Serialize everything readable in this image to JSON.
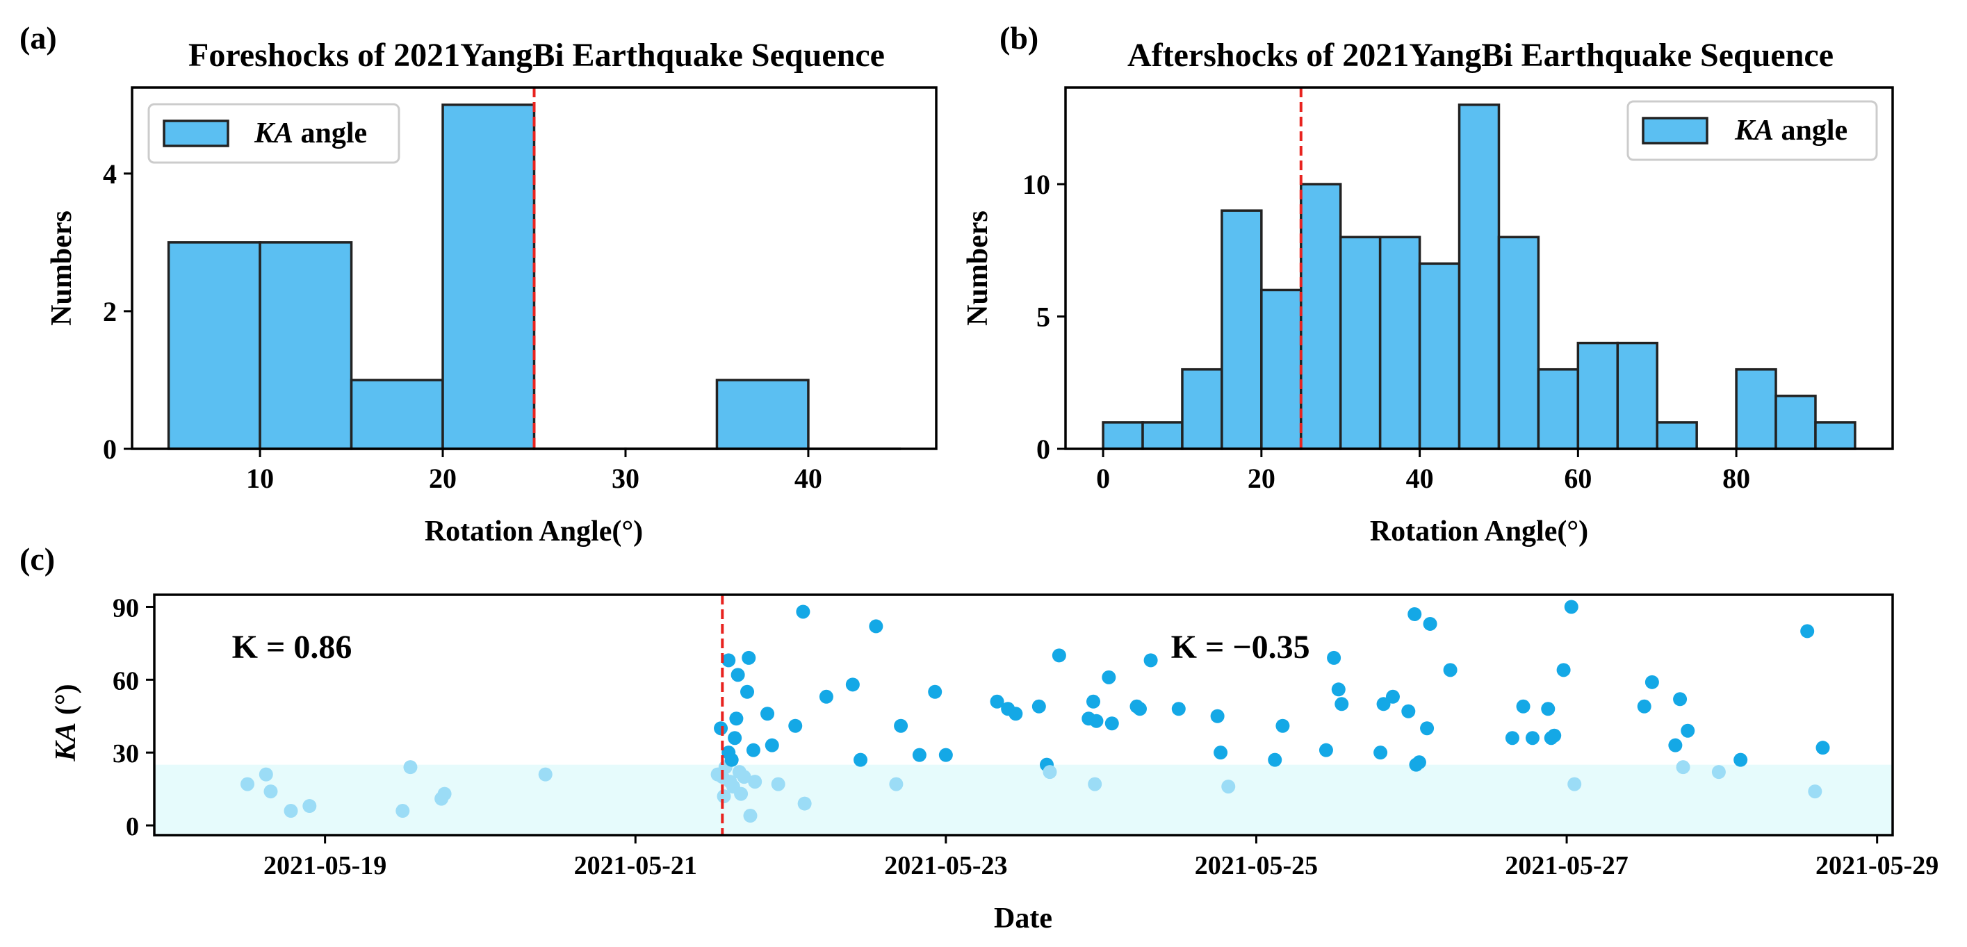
{
  "colors": {
    "bar_fill": "#5bbff2",
    "bar_edge": "#222222",
    "dashed_line": "#e8231f",
    "scatter_point": "#14a8e6",
    "scatter_point_light": "#9bdcf6",
    "band_fill": "#e6fbfc"
  },
  "chart_data": [
    {
      "type": "bar",
      "panel_label": "(a)",
      "title": "Foreshocks of 2021YangBi Earthquake Sequence",
      "xlabel": "Rotation Angle(°)",
      "ylabel": "Numbers",
      "xlim": [
        3,
        47
      ],
      "ylim": [
        0,
        5.25
      ],
      "xticks": [
        10,
        20,
        30,
        40
      ],
      "xtick_labels": [
        "10",
        "20",
        "30",
        "40"
      ],
      "yticks": [
        0,
        2,
        4
      ],
      "ytick_labels": [
        "0",
        "2",
        "4"
      ],
      "bin_edges": [
        5,
        10,
        15,
        20,
        25,
        30,
        35,
        40,
        45
      ],
      "values": [
        3,
        3,
        1,
        5,
        0,
        0,
        1,
        0
      ],
      "reference_line_x": 25,
      "legend": {
        "label_italic": "KA",
        "label_rest": " angle",
        "position": "top-left"
      }
    },
    {
      "type": "bar",
      "panel_label": "(b)",
      "title": "Aftershocks of 2021YangBi Earthquake Sequence",
      "xlabel": "Rotation Angle(°)",
      "ylabel": "Numbers",
      "xlim": [
        -4.75,
        99.75
      ],
      "ylim": [
        0,
        13.65
      ],
      "xticks": [
        0,
        20,
        40,
        60,
        80
      ],
      "xtick_labels": [
        "0",
        "20",
        "40",
        "60",
        "80"
      ],
      "yticks": [
        0,
        5,
        10
      ],
      "ytick_labels": [
        "0",
        "5",
        "10"
      ],
      "bin_edges": [
        0,
        5,
        10,
        15,
        20,
        25,
        30,
        35,
        40,
        45,
        50,
        55,
        60,
        65,
        70,
        75,
        80,
        85,
        90,
        95
      ],
      "values": [
        1,
        1,
        3,
        9,
        6,
        10,
        8,
        8,
        7,
        13,
        8,
        3,
        4,
        4,
        1,
        0,
        3,
        2,
        1
      ],
      "reference_line_x": 25,
      "legend": {
        "label_italic": "KA",
        "label_rest": " angle",
        "position": "top-right"
      }
    },
    {
      "type": "scatter",
      "panel_label": "(c)",
      "xlabel": "Date",
      "ylabel_italic": "KA",
      "ylabel_rest": " (°)",
      "xlim": [
        17.9,
        29.1
      ],
      "ylim": [
        -4,
        95
      ],
      "xticks": [
        19,
        21,
        23,
        25,
        27,
        29
      ],
      "xtick_labels": [
        "2021-05-19",
        "2021-05-21",
        "2021-05-23",
        "2021-05-25",
        "2021-05-27",
        "2021-05-29"
      ],
      "yticks": [
        0,
        30,
        60,
        90
      ],
      "ytick_labels": [
        "0",
        "30",
        "60",
        "90"
      ],
      "band_ymax": 25,
      "reference_line_x": 21.56,
      "annotations": [
        {
          "text": "K = 0.86",
          "x": 18.4,
          "y": 69
        },
        {
          "text": "K = −0.35",
          "x": 24.45,
          "y": 69
        }
      ],
      "points_x_unit": "day of May 2021 (fractional)",
      "points": [
        [
          18.5,
          17
        ],
        [
          18.62,
          21
        ],
        [
          18.65,
          14
        ],
        [
          18.78,
          6
        ],
        [
          18.9,
          8
        ],
        [
          19.5,
          6
        ],
        [
          19.55,
          24
        ],
        [
          19.75,
          11
        ],
        [
          19.77,
          13
        ],
        [
          20.42,
          21
        ],
        [
          21.53,
          21
        ],
        [
          21.55,
          40
        ],
        [
          21.56,
          20
        ],
        [
          21.57,
          12
        ],
        [
          21.58,
          24
        ],
        [
          21.6,
          30
        ],
        [
          21.6,
          68
        ],
        [
          21.61,
          18
        ],
        [
          21.62,
          27
        ],
        [
          21.63,
          16
        ],
        [
          21.64,
          36
        ],
        [
          21.65,
          44
        ],
        [
          21.66,
          62
        ],
        [
          21.67,
          22
        ],
        [
          21.68,
          13
        ],
        [
          21.7,
          20
        ],
        [
          21.72,
          55
        ],
        [
          21.73,
          69
        ],
        [
          21.74,
          4
        ],
        [
          21.76,
          31
        ],
        [
          21.77,
          18
        ],
        [
          21.85,
          46
        ],
        [
          21.88,
          33
        ],
        [
          21.92,
          17
        ],
        [
          22.03,
          41
        ],
        [
          22.08,
          88
        ],
        [
          22.09,
          9
        ],
        [
          22.23,
          53
        ],
        [
          22.4,
          58
        ],
        [
          22.45,
          27
        ],
        [
          22.55,
          82
        ],
        [
          22.68,
          17
        ],
        [
          22.71,
          41
        ],
        [
          22.83,
          29
        ],
        [
          22.93,
          55
        ],
        [
          23.0,
          29
        ],
        [
          23.33,
          51
        ],
        [
          23.4,
          48
        ],
        [
          23.45,
          46
        ],
        [
          23.6,
          49
        ],
        [
          23.65,
          25
        ],
        [
          23.67,
          22
        ],
        [
          23.73,
          70
        ],
        [
          23.92,
          44
        ],
        [
          23.95,
          51
        ],
        [
          23.96,
          17
        ],
        [
          23.97,
          43
        ],
        [
          24.05,
          61
        ],
        [
          24.07,
          42
        ],
        [
          24.23,
          49
        ],
        [
          24.25,
          48
        ],
        [
          24.32,
          68
        ],
        [
          24.5,
          48
        ],
        [
          24.75,
          45
        ],
        [
          24.77,
          30
        ],
        [
          24.82,
          16
        ],
        [
          25.12,
          27
        ],
        [
          25.17,
          41
        ],
        [
          25.45,
          31
        ],
        [
          25.5,
          69
        ],
        [
          25.53,
          56
        ],
        [
          25.55,
          50
        ],
        [
          25.8,
          30
        ],
        [
          25.82,
          50
        ],
        [
          25.88,
          53
        ],
        [
          25.98,
          47
        ],
        [
          26.02,
          87
        ],
        [
          26.03,
          25
        ],
        [
          26.05,
          26
        ],
        [
          26.1,
          40
        ],
        [
          26.12,
          83
        ],
        [
          26.25,
          64
        ],
        [
          26.65,
          36
        ],
        [
          26.72,
          49
        ],
        [
          26.78,
          36
        ],
        [
          26.88,
          48
        ],
        [
          26.9,
          36
        ],
        [
          26.92,
          37
        ],
        [
          26.98,
          64
        ],
        [
          27.03,
          90
        ],
        [
          27.05,
          17
        ],
        [
          27.5,
          49
        ],
        [
          27.55,
          59
        ],
        [
          27.7,
          33
        ],
        [
          27.73,
          52
        ],
        [
          27.75,
          24
        ],
        [
          27.78,
          39
        ],
        [
          27.98,
          22
        ],
        [
          28.12,
          27
        ],
        [
          28.55,
          80
        ],
        [
          28.6,
          14
        ],
        [
          28.65,
          32
        ]
      ]
    }
  ]
}
